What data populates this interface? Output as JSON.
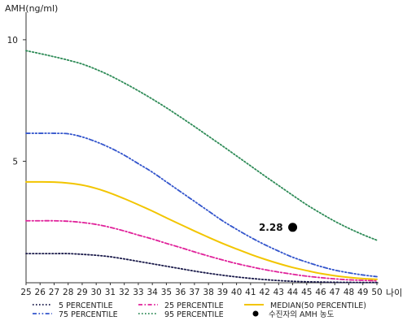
{
  "chart_data": {
    "type": "line",
    "ylabel": "AMH(ng/ml)",
    "xlabel": "나이",
    "xlim": [
      25,
      50
    ],
    "ylim": [
      0,
      11
    ],
    "x_ticks": [
      25,
      26,
      27,
      28,
      29,
      30,
      31,
      32,
      33,
      34,
      35,
      36,
      37,
      38,
      39,
      40,
      41,
      42,
      43,
      44,
      45,
      46,
      47,
      48,
      49,
      50
    ],
    "y_ticks": [
      5,
      10
    ],
    "x": [
      25,
      26,
      27,
      28,
      29,
      30,
      31,
      32,
      33,
      34,
      35,
      36,
      37,
      38,
      39,
      40,
      41,
      42,
      43,
      44,
      45,
      46,
      47,
      48,
      49,
      50
    ],
    "series": [
      {
        "name": "5 PERCENTILE",
        "color": "#1a1a4a",
        "dash": "dotted",
        "values": [
          1.2,
          1.2,
          1.2,
          1.2,
          1.17,
          1.13,
          1.07,
          0.98,
          0.88,
          0.78,
          0.68,
          0.58,
          0.48,
          0.39,
          0.31,
          0.24,
          0.18,
          0.13,
          0.09,
          0.06,
          0.04,
          0.03,
          0.02,
          0.015,
          0.01,
          0.01
        ]
      },
      {
        "name": "25 PERCENTILE",
        "color": "#e0219a",
        "dash": "dashdot",
        "values": [
          2.55,
          2.55,
          2.55,
          2.53,
          2.48,
          2.4,
          2.28,
          2.13,
          1.96,
          1.8,
          1.62,
          1.45,
          1.27,
          1.1,
          0.94,
          0.79,
          0.66,
          0.54,
          0.44,
          0.35,
          0.27,
          0.21,
          0.16,
          0.12,
          0.1,
          0.08
        ]
      },
      {
        "name": "75 PERCENTILE",
        "color": "#3355cc",
        "dash": "dashdotdot",
        "values": [
          6.15,
          6.15,
          6.15,
          6.13,
          6.0,
          5.8,
          5.55,
          5.25,
          4.9,
          4.55,
          4.15,
          3.75,
          3.35,
          2.95,
          2.55,
          2.2,
          1.87,
          1.57,
          1.3,
          1.05,
          0.85,
          0.67,
          0.52,
          0.41,
          0.32,
          0.25
        ]
      },
      {
        "name": "95 PERCENTILE",
        "color": "#2e8b57",
        "dash": "dotted",
        "values": [
          9.55,
          9.43,
          9.3,
          9.16,
          9.0,
          8.78,
          8.52,
          8.22,
          7.9,
          7.56,
          7.2,
          6.82,
          6.43,
          6.03,
          5.63,
          5.22,
          4.81,
          4.4,
          4.0,
          3.6,
          3.21,
          2.86,
          2.53,
          2.24,
          1.98,
          1.75
        ]
      },
      {
        "name": "MEDIAN(50 PERCENTILE)",
        "color": "#f2c500",
        "dash": "solid",
        "values": [
          4.15,
          4.15,
          4.14,
          4.1,
          4.02,
          3.88,
          3.69,
          3.46,
          3.21,
          2.95,
          2.67,
          2.4,
          2.13,
          1.87,
          1.62,
          1.39,
          1.17,
          0.97,
          0.79,
          0.63,
          0.5,
          0.38,
          0.29,
          0.22,
          0.17,
          0.14
        ]
      }
    ],
    "marker": {
      "name": "수진자의 AMH 농도",
      "x": 44,
      "y": 2.28,
      "label": "2.28",
      "color": "#000000"
    },
    "legend": {
      "position": "bottom",
      "order": [
        "5 PERCENTILE",
        "25 PERCENTILE",
        "MEDIAN(50 PERCENTILE)",
        "75 PERCENTILE",
        "95 PERCENTILE",
        "수진자의 AMH 농도"
      ]
    },
    "grid": false
  }
}
